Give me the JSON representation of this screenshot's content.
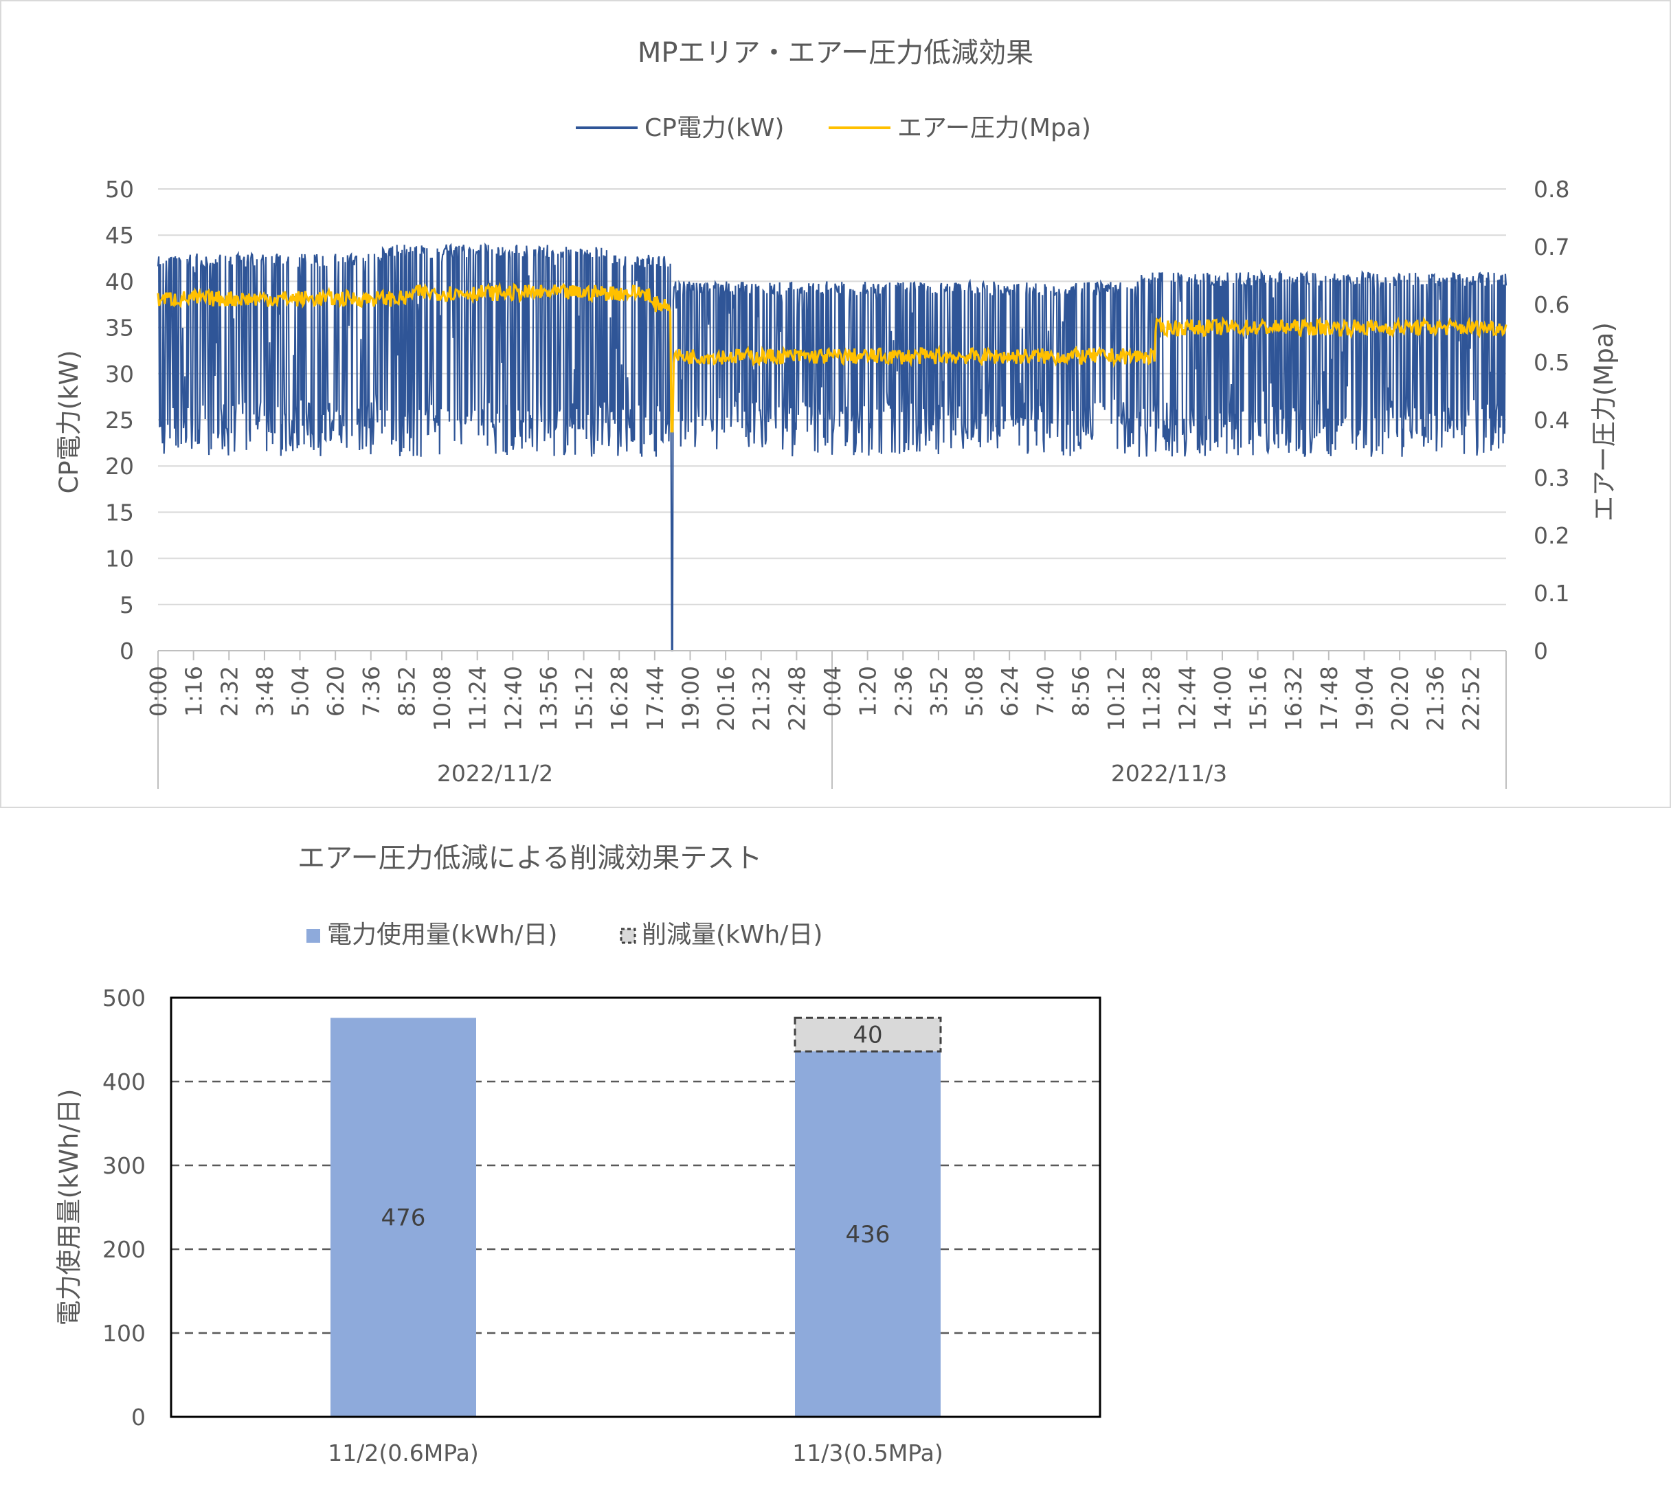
{
  "colors": {
    "power": "#2f5597",
    "pressure": "#ffc000",
    "usage_bar": "#8eaadb",
    "reduction_bar": "#d9d9d9",
    "grid": "#d9d9d9",
    "text": "#595959"
  },
  "chart_data": [
    {
      "type": "line",
      "title": "MPエリア・エアー圧力低減効果",
      "legend": {
        "position": "top",
        "entries": [
          "CP電力(kW)",
          "エアー圧力(Mpa)"
        ]
      },
      "ylabel": "CP電力(kW)",
      "y2label": "エアー圧力(Mpa)",
      "ylim": [
        0,
        50
      ],
      "y2lim": [
        0,
        0.8
      ],
      "yticks": [
        "0",
        "5",
        "10",
        "15",
        "20",
        "25",
        "30",
        "35",
        "40",
        "45",
        "50"
      ],
      "y2ticks": [
        "0",
        "0.1",
        "0.2",
        "0.3",
        "0.4",
        "0.5",
        "0.6",
        "0.7",
        "0.8"
      ],
      "xticks_day1": [
        "0:00",
        "1:16",
        "2:32",
        "3:48",
        "5:04",
        "6:20",
        "7:36",
        "8:52",
        "10:08",
        "11:24",
        "12:40",
        "13:56",
        "15:12",
        "16:28",
        "17:44",
        "19:00",
        "20:16",
        "21:32",
        "22:48"
      ],
      "xticks_day2": [
        "0:04",
        "1:20",
        "2:36",
        "3:52",
        "5:08",
        "6:24",
        "7:40",
        "8:56",
        "10:12",
        "11:28",
        "12:44",
        "14:00",
        "15:16",
        "16:32",
        "17:48",
        "19:04",
        "20:20",
        "21:36",
        "22:52"
      ],
      "groups": [
        "2022/11/2",
        "2022/11/3"
      ],
      "grid": true,
      "series": [
        {
          "name": "CP電力(kW)",
          "axis": "left",
          "color": "#2f5597",
          "segments": [
            {
              "from_hour": 0,
              "to_hour": 8,
              "low": 21,
              "high": 43
            },
            {
              "from_hour": 8,
              "to_hour": 16,
              "low": 21,
              "high": 44
            },
            {
              "from_hour": 16,
              "to_hour": 18.3,
              "low": 21,
              "high": 43
            },
            {
              "from_hour": 18.3,
              "to_hour": 35,
              "low": 21,
              "high": 40
            },
            {
              "from_hour": 35,
              "to_hour": 48,
              "low": 21,
              "high": 41
            }
          ],
          "dip": {
            "hour": 18.3,
            "value": 0
          }
        },
        {
          "name": "エアー圧力(Mpa)",
          "axis": "right",
          "color": "#ffc000",
          "segments": [
            {
              "from_hour": 0,
              "to_hour": 9,
              "value": 0.61
            },
            {
              "from_hour": 9,
              "to_hour": 17.5,
              "value": 0.62
            },
            {
              "from_hour": 17.5,
              "to_hour": 18.3,
              "value": 0.6
            },
            {
              "from_hour": 18.3,
              "to_hour": 35.5,
              "value": 0.51
            },
            {
              "from_hour": 35.5,
              "to_hour": 48,
              "value": 0.56
            }
          ]
        }
      ]
    },
    {
      "type": "bar",
      "stacked": true,
      "title": "エアー圧力低減による削減効果テスト",
      "legend": {
        "position": "top-left",
        "entries": [
          "電力使用量(kWh/日)",
          "削減量(kWh/日)"
        ]
      },
      "ylabel": "電力使用量(kWh/日)",
      "ylim": [
        0,
        500
      ],
      "yticks": [
        "0",
        "100",
        "200",
        "300",
        "400",
        "500"
      ],
      "categories": [
        "11/2(0.6MPa)",
        "11/3(0.5MPa)"
      ],
      "series": [
        {
          "name": "電力使用量(kWh/日)",
          "values": [
            476,
            436
          ],
          "labels": [
            "476",
            "436"
          ]
        },
        {
          "name": "削減量(kWh/日)",
          "values": [
            0,
            40
          ],
          "labels": [
            "",
            "40"
          ]
        }
      ]
    }
  ]
}
